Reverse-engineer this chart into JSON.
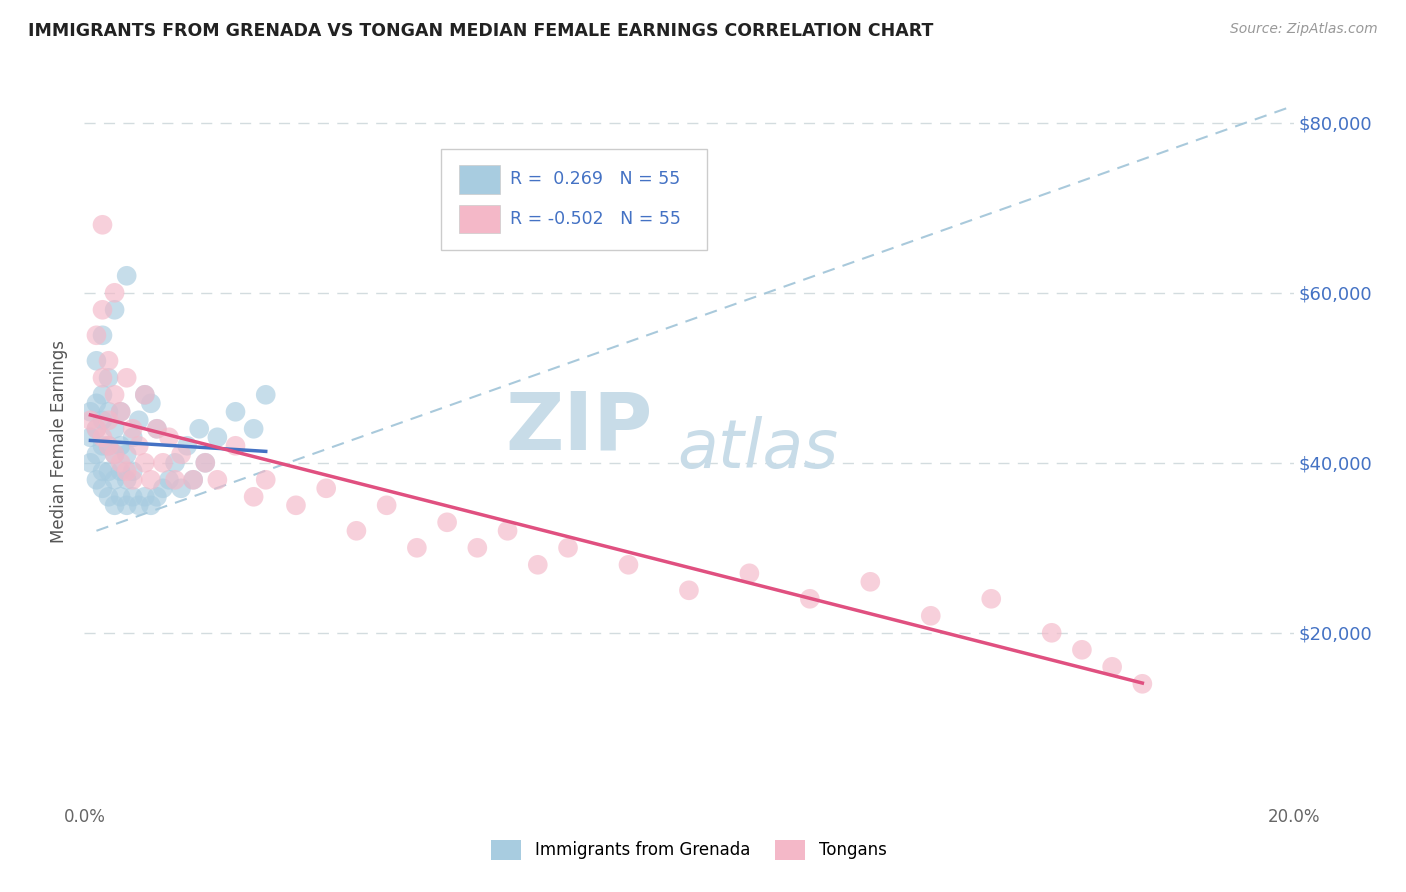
{
  "title": "IMMIGRANTS FROM GRENADA VS TONGAN MEDIAN FEMALE EARNINGS CORRELATION CHART",
  "source": "Source: ZipAtlas.com",
  "ylabel": "Median Female Earnings",
  "xlim": [
    0.0,
    0.2
  ],
  "ylim": [
    0,
    85000
  ],
  "yticks": [
    20000,
    40000,
    60000,
    80000
  ],
  "ytick_labels": [
    "$20,000",
    "$40,000",
    "$60,000",
    "$80,000"
  ],
  "xticks": [
    0.0,
    0.05,
    0.1,
    0.15,
    0.2
  ],
  "xtick_labels": [
    "0.0%",
    "",
    "",
    "",
    "20.0%"
  ],
  "legend_R1": "0.269",
  "legend_N1": "55",
  "legend_R2": "-0.502",
  "legend_N2": "55",
  "color_blue": "#a8cce0",
  "color_pink": "#f4b8c8",
  "color_blue_line": "#4472C4",
  "color_pink_line": "#e05080",
  "color_diag_line": "#a0c4d8",
  "color_grid": "#c8d4d8",
  "color_tick_label": "#4472C4",
  "watermark_zip": "ZIP",
  "watermark_atlas": "atlas",
  "watermark_color": "#c8dce8",
  "blue_x": [
    0.001,
    0.001,
    0.001,
    0.002,
    0.002,
    0.002,
    0.002,
    0.002,
    0.003,
    0.003,
    0.003,
    0.003,
    0.003,
    0.003,
    0.004,
    0.004,
    0.004,
    0.004,
    0.004,
    0.005,
    0.005,
    0.005,
    0.005,
    0.005,
    0.006,
    0.006,
    0.006,
    0.006,
    0.007,
    0.007,
    0.007,
    0.007,
    0.008,
    0.008,
    0.008,
    0.009,
    0.009,
    0.01,
    0.01,
    0.011,
    0.011,
    0.012,
    0.012,
    0.013,
    0.014,
    0.015,
    0.016,
    0.017,
    0.018,
    0.019,
    0.02,
    0.022,
    0.025,
    0.028,
    0.03
  ],
  "blue_y": [
    40000,
    43000,
    46000,
    38000,
    41000,
    44000,
    47000,
    52000,
    37000,
    39000,
    42000,
    45000,
    48000,
    55000,
    36000,
    39000,
    42000,
    46000,
    50000,
    35000,
    38000,
    41000,
    44000,
    58000,
    36000,
    39000,
    42000,
    46000,
    35000,
    38000,
    41000,
    62000,
    36000,
    39000,
    43000,
    35000,
    45000,
    36000,
    48000,
    35000,
    47000,
    36000,
    44000,
    37000,
    38000,
    40000,
    37000,
    42000,
    38000,
    44000,
    40000,
    43000,
    46000,
    44000,
    48000
  ],
  "pink_x": [
    0.001,
    0.002,
    0.002,
    0.003,
    0.003,
    0.003,
    0.004,
    0.004,
    0.005,
    0.005,
    0.005,
    0.006,
    0.006,
    0.007,
    0.007,
    0.008,
    0.008,
    0.009,
    0.01,
    0.01,
    0.011,
    0.012,
    0.013,
    0.014,
    0.015,
    0.016,
    0.018,
    0.02,
    0.022,
    0.025,
    0.028,
    0.03,
    0.035,
    0.04,
    0.045,
    0.05,
    0.055,
    0.06,
    0.065,
    0.07,
    0.075,
    0.08,
    0.09,
    0.1,
    0.11,
    0.12,
    0.13,
    0.14,
    0.15,
    0.16,
    0.003,
    0.004,
    0.165,
    0.17,
    0.175
  ],
  "pink_y": [
    45000,
    44000,
    55000,
    43000,
    50000,
    58000,
    42000,
    52000,
    41000,
    48000,
    60000,
    40000,
    46000,
    39000,
    50000,
    38000,
    44000,
    42000,
    40000,
    48000,
    38000,
    44000,
    40000,
    43000,
    38000,
    41000,
    38000,
    40000,
    38000,
    42000,
    36000,
    38000,
    35000,
    37000,
    32000,
    35000,
    30000,
    33000,
    30000,
    32000,
    28000,
    30000,
    28000,
    25000,
    27000,
    24000,
    26000,
    22000,
    24000,
    20000,
    68000,
    45000,
    18000,
    16000,
    14000
  ]
}
